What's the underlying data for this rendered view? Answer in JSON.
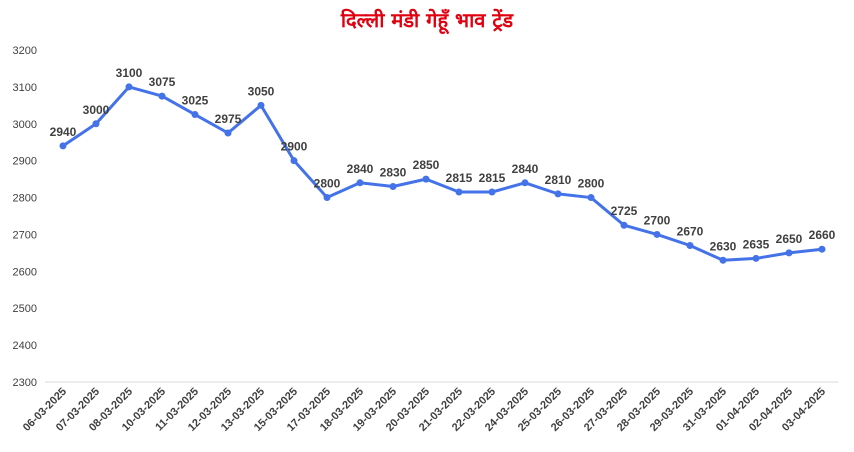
{
  "chart_data": {
    "type": "line",
    "title": "दिल्ली मंडी गेहूँ भाव ट्रेंड",
    "xlabel": "",
    "ylabel": "",
    "ylim": [
      2300,
      3200
    ],
    "yticks": [
      2300,
      2400,
      2500,
      2600,
      2700,
      2800,
      2900,
      3000,
      3100,
      3200
    ],
    "grid": false,
    "legend": "none",
    "categories": [
      "06-03-2025",
      "07-03-2025",
      "08-03-2025",
      "10-03-2025",
      "11-03-2025",
      "12-03-2025",
      "13-03-2025",
      "15-03-2025",
      "17-03-2025",
      "18-03-2025",
      "19-03-2025",
      "20-03-2025",
      "21-03-2025",
      "22-03-2025",
      "24-03-2025",
      "25-03-2025",
      "26-03-2025",
      "27-03-2025",
      "28-03-2025",
      "29-03-2025",
      "31-03-2025",
      "01-04-2025",
      "02-04-2025",
      "03-04-2025"
    ],
    "series": [
      {
        "values": [
          2940,
          3000,
          3100,
          3075,
          3025,
          2975,
          3050,
          2900,
          2800,
          2840,
          2830,
          2850,
          2815,
          2815,
          2840,
          2810,
          2800,
          2725,
          2700,
          2670,
          2630,
          2635,
          2650,
          2660
        ],
        "color": "#4472e8"
      }
    ],
    "title_color": "#e0000f"
  }
}
